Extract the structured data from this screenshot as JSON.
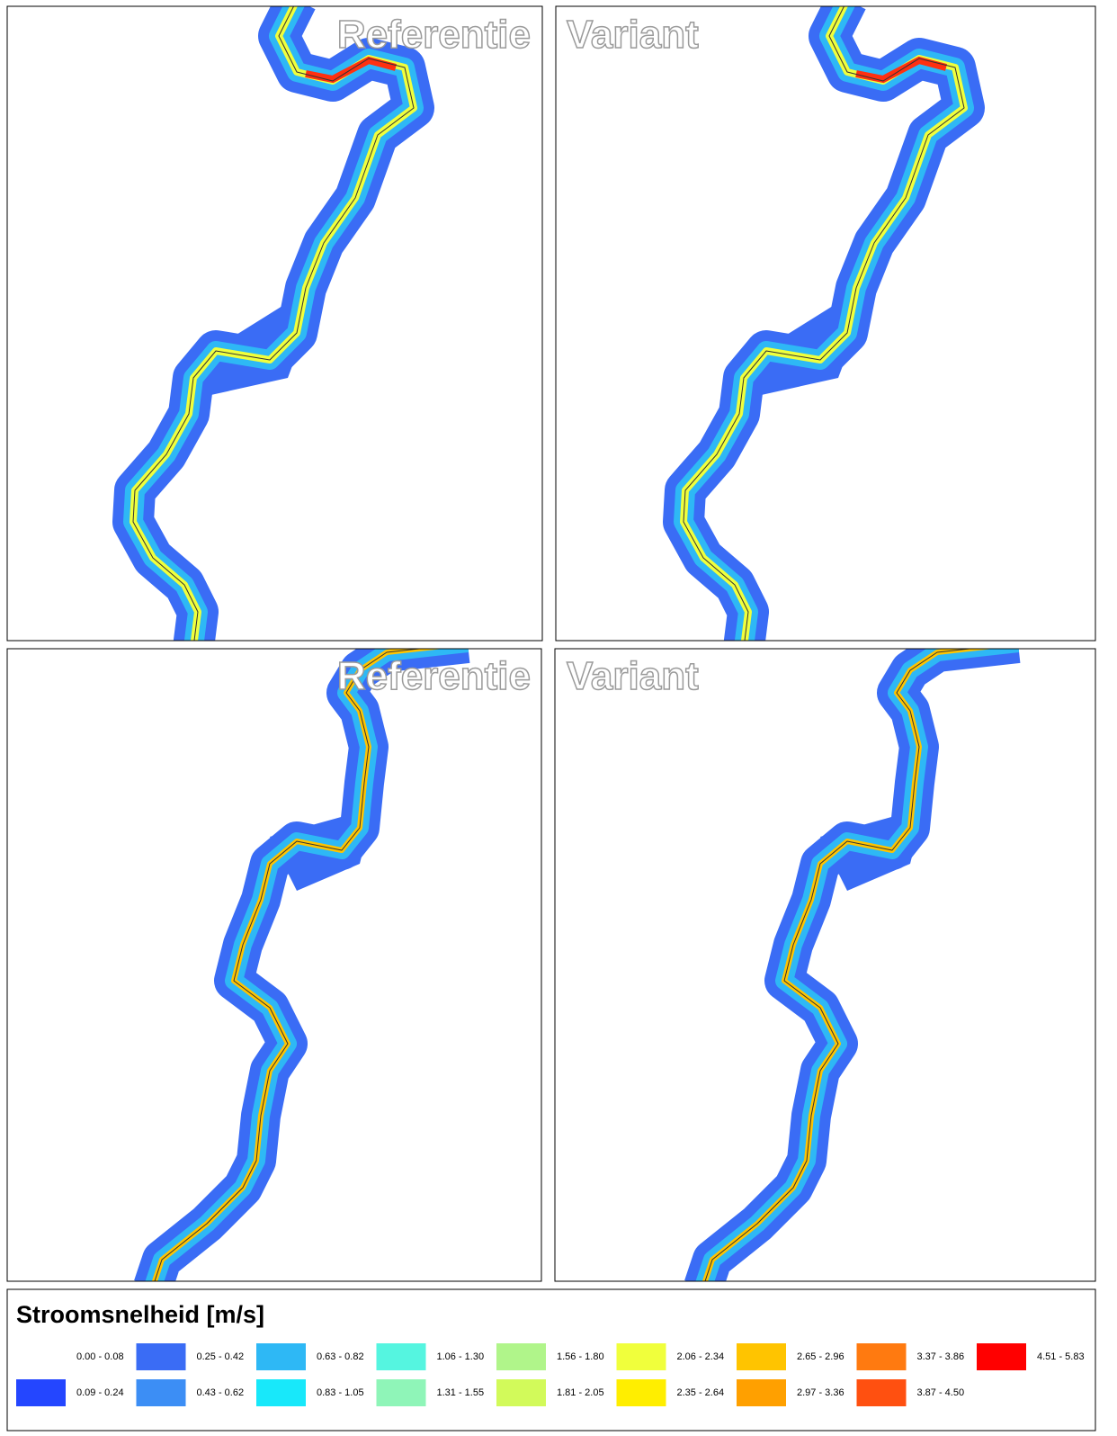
{
  "panels": [
    {
      "label": "Referentie"
    },
    {
      "label": "Variant"
    },
    {
      "label": "Referentie"
    },
    {
      "label": "Variant"
    }
  ],
  "legend": {
    "title": "Stroomsnelheid [m/s]",
    "entries": [
      {
        "label": "0.00 - 0.08",
        "color": "#ffffff"
      },
      {
        "label": "0.09 - 0.24",
        "color": "#2446ff"
      },
      {
        "label": "0.25 - 0.42",
        "color": "#3a6cf5"
      },
      {
        "label": "0.43 - 0.62",
        "color": "#3c8ef5"
      },
      {
        "label": "0.63 - 0.82",
        "color": "#2eb8f5"
      },
      {
        "label": "0.83 - 1.05",
        "color": "#18e8fa"
      },
      {
        "label": "1.06 - 1.30",
        "color": "#55f5e0"
      },
      {
        "label": "1.31 - 1.55",
        "color": "#8ff5b8"
      },
      {
        "label": "1.56 - 1.80",
        "color": "#b0f58a"
      },
      {
        "label": "1.81 - 2.05",
        "color": "#d2fa5a"
      },
      {
        "label": "2.06 - 2.34",
        "color": "#f0ff3c"
      },
      {
        "label": "2.35 - 2.64",
        "color": "#ffee00"
      },
      {
        "label": "2.65 - 2.96",
        "color": "#ffc400"
      },
      {
        "label": "2.97 - 3.36",
        "color": "#ffa000"
      },
      {
        "label": "3.37 - 3.86",
        "color": "#ff7a10"
      },
      {
        "label": "3.87 - 4.50",
        "color": "#ff5010"
      },
      {
        "label": "4.51 - 5.83",
        "color": "#ff0000"
      }
    ]
  }
}
